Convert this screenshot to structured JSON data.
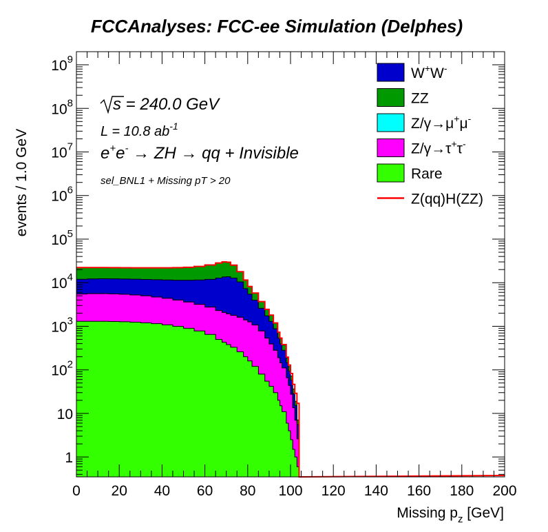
{
  "chart_data": {
    "type": "area",
    "title": "FCCAnalyses: FCC-ee Simulation (Delphes)",
    "xlabel_main": "Missing p",
    "xlabel_sub": "z",
    "xlabel_unit": " [GeV]",
    "ylabel": "events / 1.0 GeV",
    "xlim": [
      0,
      200
    ],
    "ylim": [
      0.35,
      2000000000
    ],
    "y_scale": "log",
    "stacked": true,
    "x_ticks": [
      "0",
      "20",
      "40",
      "60",
      "80",
      "100",
      "120",
      "140",
      "160",
      "180",
      "200"
    ],
    "y_ticks": [
      {
        "value": 1,
        "base": "1",
        "exp": ""
      },
      {
        "value": 10,
        "base": "10",
        "exp": ""
      },
      {
        "value": 100,
        "base": "10",
        "exp": "2"
      },
      {
        "value": 1000,
        "base": "10",
        "exp": "3"
      },
      {
        "value": 10000,
        "base": "10",
        "exp": "4"
      },
      {
        "value": 100000,
        "base": "10",
        "exp": "5"
      },
      {
        "value": 1000000,
        "base": "10",
        "exp": "6"
      },
      {
        "value": 10000000,
        "base": "10",
        "exp": "7"
      },
      {
        "value": 100000000,
        "base": "10",
        "exp": "8"
      },
      {
        "value": 1000000000,
        "base": "10",
        "exp": "9"
      }
    ],
    "x": [
      0,
      5,
      10,
      15,
      20,
      25,
      30,
      35,
      40,
      45,
      50,
      55,
      60,
      65,
      68,
      70,
      72,
      75,
      78,
      80,
      82,
      85,
      88,
      90,
      92,
      94,
      95,
      96,
      98,
      99,
      100,
      101,
      102,
      103,
      104,
      105
    ],
    "series": [
      {
        "key": "rare",
        "color": "#33ff00",
        "values": [
          1300,
          1300,
          1300,
          1290,
          1270,
          1240,
          1200,
          1150,
          1080,
          1000,
          900,
          780,
          650,
          500,
          430,
          380,
          330,
          260,
          200,
          160,
          120,
          80,
          55,
          42,
          30,
          20,
          15,
          11,
          6,
          4,
          2.5,
          1.5,
          1.0,
          0.6,
          0,
          0
        ]
      },
      {
        "key": "tautau",
        "color": "#ff00ff",
        "values": [
          4200,
          4300,
          4300,
          4250,
          4150,
          4000,
          3800,
          3550,
          3300,
          3000,
          2700,
          2400,
          2100,
          1800,
          1650,
          1550,
          1450,
          1350,
          1200,
          1100,
          950,
          700,
          480,
          350,
          250,
          170,
          130,
          100,
          60,
          40,
          25,
          12,
          6,
          2,
          0,
          0
        ]
      },
      {
        "key": "mumu",
        "color": "#00ffff",
        "values": [
          0,
          0,
          0,
          0,
          0,
          0,
          0,
          0,
          0,
          0,
          0,
          0,
          0,
          0,
          0,
          0,
          0,
          0,
          0,
          0,
          0,
          0,
          0,
          0,
          0,
          0,
          0,
          0,
          0,
          0,
          0,
          0,
          0,
          0,
          0,
          0
        ]
      },
      {
        "key": "ww",
        "color": "#0000cc",
        "values": [
          6500,
          6600,
          6700,
          6700,
          6750,
          6800,
          6900,
          7000,
          7200,
          7400,
          7800,
          8400,
          9200,
          10500,
          11500,
          11800,
          11000,
          8800,
          5900,
          4200,
          2900,
          1800,
          1200,
          900,
          600,
          350,
          250,
          170,
          80,
          50,
          30,
          15,
          8,
          3,
          0,
          0
        ]
      },
      {
        "key": "zz",
        "color": "#009900",
        "values": [
          10200,
          10000,
          9900,
          9900,
          9900,
          9900,
          10000,
          10200,
          10400,
          10700,
          11200,
          12000,
          13500,
          15500,
          16500,
          15800,
          12500,
          7500,
          4200,
          2700,
          1800,
          1100,
          700,
          500,
          300,
          180,
          130,
          90,
          40,
          25,
          15,
          8,
          4,
          1.5,
          0,
          0
        ]
      },
      {
        "key": "signal",
        "color": "#ff0000",
        "values": [
          10,
          10,
          10,
          10,
          10,
          10,
          10,
          10,
          10,
          10,
          10,
          10,
          10,
          10,
          10,
          10,
          10,
          10,
          10,
          10,
          10,
          10,
          10,
          10,
          10,
          10,
          10,
          10,
          10,
          10,
          10,
          10,
          10,
          10,
          0,
          0
        ]
      }
    ],
    "legend_position": "top-right",
    "legend": [
      {
        "key": "ww",
        "type": "box",
        "color": "#0000cc",
        "parts": [
          {
            "t": "W"
          },
          {
            "t": "+",
            "s": "sup"
          },
          {
            "t": "W"
          },
          {
            "t": "-",
            "s": "sup"
          }
        ]
      },
      {
        "key": "zz",
        "type": "box",
        "color": "#009900",
        "parts": [
          {
            "t": "ZZ"
          }
        ]
      },
      {
        "key": "mumu",
        "type": "box",
        "color": "#00ffff",
        "parts": [
          {
            "t": "Z/γ→μ"
          },
          {
            "t": "+",
            "s": "sup"
          },
          {
            "t": "μ"
          },
          {
            "t": "-",
            "s": "sup"
          }
        ]
      },
      {
        "key": "tautau",
        "type": "box",
        "color": "#ff00ff",
        "parts": [
          {
            "t": "Z/γ→τ"
          },
          {
            "t": "+",
            "s": "sup"
          },
          {
            "t": "τ"
          },
          {
            "t": "-",
            "s": "sup"
          }
        ]
      },
      {
        "key": "rare",
        "type": "box",
        "color": "#33ff00",
        "parts": [
          {
            "t": "Rare"
          }
        ]
      },
      {
        "key": "signal",
        "type": "line",
        "color": "#ff0000",
        "parts": [
          {
            "t": "Z(qq)H(ZZ)"
          }
        ]
      }
    ],
    "annotations": {
      "sqrt_s": "s = 240.0 GeV",
      "lumi_main": "L = 10.8 ab",
      "lumi_exp": "-1",
      "process": {
        "e1": "e",
        "e1_sup": "+",
        "e2": "e",
        "e2_sup": "-",
        "rest": " → ZH → qq + Invisible"
      },
      "selection": "sel_BNL1 + Missing pT > 20"
    }
  }
}
